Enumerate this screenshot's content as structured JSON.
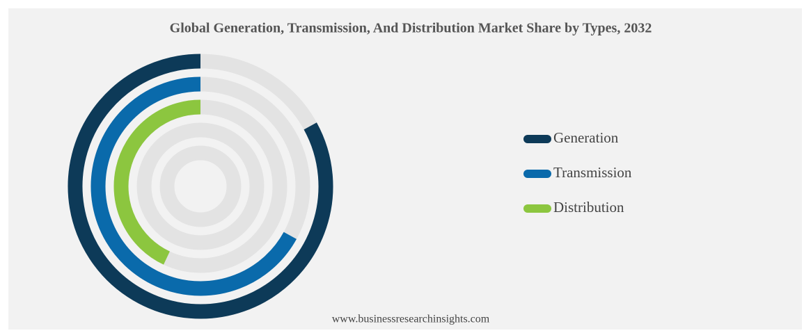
{
  "chart_data": {
    "type": "radial_bar",
    "title": "Global Generation, Transmission, And Distribution Market Share by Types, 2032",
    "source": "www.businessresearchinsights.com",
    "series": [
      {
        "name": "Generation",
        "color": "#0d3a58",
        "values": [
          83
        ]
      },
      {
        "name": "Transmission",
        "color": "#0a6aab",
        "values": [
          67
        ]
      },
      {
        "name": "Distribution",
        "color": "#8cc63f",
        "values": [
          43
        ]
      }
    ],
    "legend": "right"
  }
}
